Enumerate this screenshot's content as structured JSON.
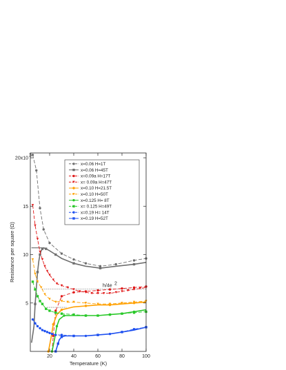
{
  "chart_data": {
    "type": "line",
    "xlabel": "Temperature (K)",
    "ylabel": "Resistance per square (Ω)",
    "xlim": [
      4,
      100
    ],
    "ylim": [
      0,
      20.5
    ],
    "x_ticks": [
      20,
      40,
      60,
      80,
      100
    ],
    "y_ticks": [
      5,
      10,
      15,
      20
    ],
    "y_tick_labels": [
      "5",
      "10",
      "15",
      "20x10"
    ],
    "y_exponent": "3",
    "annotation": {
      "text": "h/4e",
      "sup": "2",
      "y": 6.45
    },
    "legend_position": "top-right",
    "series": [
      {
        "name": "x=0.06   H=1T",
        "color": "#6e6e6e",
        "marker": "circle",
        "dashed": true,
        "x": [
          6,
          9,
          12,
          15,
          20,
          30,
          40,
          50,
          62,
          75,
          90,
          100
        ],
        "y": [
          20.3,
          18.7,
          14.8,
          12.6,
          11.2,
          10.1,
          9.5,
          9.1,
          8.8,
          9.0,
          9.4,
          9.6
        ]
      },
      {
        "name": "x=0.06   H=45T",
        "color": "#6e6e6e",
        "marker": "square",
        "dashed": false,
        "x": [
          5,
          7,
          8,
          9,
          10,
          11,
          12,
          13,
          14,
          15,
          17,
          20,
          25,
          30,
          40,
          50,
          62,
          75,
          90,
          100
        ],
        "y": [
          0.9,
          2.6,
          4.9,
          6.6,
          8.2,
          9.3,
          10.0,
          10.4,
          10.6,
          10.7,
          10.6,
          10.4,
          10.0,
          9.6,
          9.1,
          8.8,
          8.6,
          8.8,
          9.0,
          9.2
        ],
        "flat_x": [
          5,
          15
        ],
        "flat_y": 10.7
      },
      {
        "name": "x=0.09a  H=17T",
        "color": "#e01818",
        "marker": "circle",
        "dashed": true,
        "x": [
          22,
          23,
          25,
          30,
          40,
          50,
          60,
          70,
          80,
          90,
          100
        ],
        "y": [
          0.0,
          1.6,
          4.2,
          5.7,
          6.1,
          6.2,
          6.3,
          6.4,
          6.5,
          6.6,
          6.7
        ]
      },
      {
        "name": "x= 0.09a  H=47T",
        "color": "#e01818",
        "marker": "triangle",
        "dashed": true,
        "x": [
          6,
          8,
          10,
          12,
          14,
          16,
          18,
          20,
          23,
          26,
          30,
          35,
          40,
          45,
          50,
          55,
          60,
          65,
          70,
          75,
          80,
          85,
          90,
          95,
          100
        ],
        "y": [
          15.1,
          13.0,
          11.6,
          10.3,
          9.5,
          8.8,
          8.3,
          7.9,
          7.4,
          7.0,
          6.8,
          6.6,
          6.4,
          6.2,
          6.1,
          6.0,
          6.0,
          6.0,
          6.0,
          6.1,
          6.2,
          6.3,
          6.4,
          6.5,
          6.6
        ]
      },
      {
        "name": "x=0.10   H=21.5T",
        "color": "#ffa000",
        "marker": "circle",
        "dashed": false,
        "x": [
          19,
          21,
          23,
          26,
          30,
          40,
          50,
          60,
          70,
          80,
          90,
          100
        ],
        "y": [
          0.0,
          1.3,
          2.8,
          3.8,
          4.3,
          4.6,
          4.7,
          4.8,
          4.8,
          4.9,
          5.0,
          5.1
        ]
      },
      {
        "name": "x=0.10   H=50T",
        "color": "#ffa000",
        "marker": "triangle",
        "dashed": true,
        "x": [
          6,
          8,
          10,
          13,
          16,
          20,
          25,
          30,
          35,
          40,
          50,
          60,
          70,
          80,
          90,
          100
        ],
        "y": [
          9.5,
          8.0,
          7.2,
          6.6,
          5.9,
          5.4,
          5.1,
          5.2,
          5.1,
          5.1,
          5.0,
          4.9,
          4.9,
          5.0,
          5.1,
          5.2
        ]
      },
      {
        "name": "x=0.125  H= 8T",
        "color": "#28c828",
        "marker": "circle",
        "dashed": false,
        "x": [
          22,
          24,
          26,
          28,
          32,
          40,
          50,
          60,
          70,
          80,
          90,
          100
        ],
        "y": [
          0.0,
          1.2,
          2.6,
          3.3,
          3.7,
          3.7,
          3.7,
          3.7,
          3.8,
          3.9,
          4.1,
          4.3
        ]
      },
      {
        "name": "x= 0.125  H=49T",
        "color": "#28c828",
        "marker": "square",
        "dashed": true,
        "x": [
          6,
          8,
          10,
          12,
          14,
          17,
          20,
          25,
          30,
          40,
          50,
          60,
          70,
          80,
          90,
          100
        ],
        "y": [
          7.2,
          6.4,
          5.7,
          5.2,
          4.9,
          4.4,
          4.2,
          4.0,
          3.9,
          3.8,
          3.7,
          3.7,
          3.8,
          3.9,
          4.0,
          4.1
        ]
      },
      {
        "name": "x=0.19   H= 14T",
        "color": "#1e50f0",
        "marker": "circle",
        "dashed": true,
        "x": [
          6,
          8,
          10,
          12,
          14,
          16,
          18,
          20,
          22,
          25,
          30,
          40,
          50,
          60,
          70,
          80,
          90,
          100
        ],
        "y": [
          3.3,
          2.9,
          2.6,
          2.4,
          2.2,
          2.1,
          2.0,
          1.9,
          1.8,
          1.7,
          1.7,
          1.6,
          1.6,
          1.7,
          1.8,
          2.0,
          2.3,
          2.5
        ]
      },
      {
        "name": "x=0.19   H=52T",
        "color": "#1e50f0",
        "marker": "square",
        "dashed": false,
        "x": [
          25,
          26,
          27,
          28,
          30,
          33,
          40,
          50,
          60,
          70,
          80,
          90,
          100
        ],
        "y": [
          0.0,
          0.4,
          0.8,
          1.2,
          1.5,
          1.6,
          1.6,
          1.6,
          1.7,
          1.8,
          2.0,
          2.2,
          2.5
        ]
      }
    ],
    "reference_lines": [
      {
        "y": 10.7,
        "x": [
          5,
          16
        ]
      },
      {
        "y": 6.45,
        "x": [
          14,
          100
        ]
      },
      {
        "y": 4.55,
        "x": [
          18,
          34
        ]
      },
      {
        "y": 1.6,
        "x": [
          28,
          44
        ]
      }
    ]
  }
}
